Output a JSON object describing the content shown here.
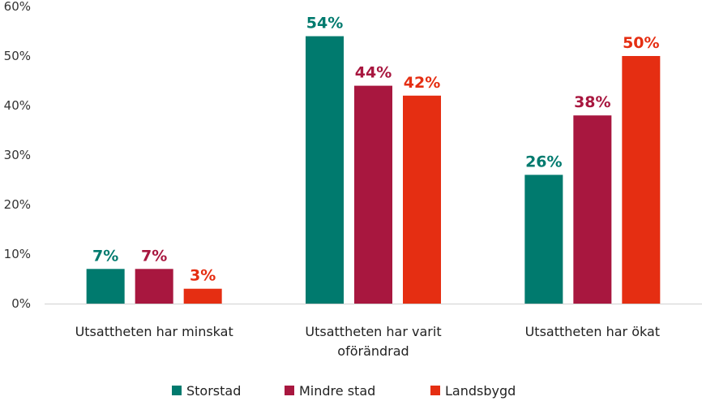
{
  "chart_data": {
    "type": "bar",
    "categories": [
      [
        "Utsattheten har minskat"
      ],
      [
        "Utsattheten har varit",
        "oförändrad"
      ],
      [
        "Utsattheten har ökat"
      ]
    ],
    "series": [
      {
        "name": "Storstad",
        "color": "#007a6e",
        "values": [
          7,
          54,
          26
        ],
        "labels": [
          "7%",
          "54%",
          "26%"
        ]
      },
      {
        "name": "Mindre stad",
        "color": "#a8173f",
        "values": [
          7,
          44,
          38
        ],
        "labels": [
          "7%",
          "44%",
          "38%"
        ]
      },
      {
        "name": "Landsbygd",
        "color": "#e52e12",
        "values": [
          3,
          42,
          50
        ],
        "labels": [
          "3%",
          "42%",
          "50%"
        ]
      }
    ],
    "yticks": [
      "0%",
      "10%",
      "20%",
      "30%",
      "40%",
      "50%",
      "60%"
    ],
    "ylim": [
      0,
      60
    ],
    "legend_position": "bottom",
    "grid": false
  }
}
